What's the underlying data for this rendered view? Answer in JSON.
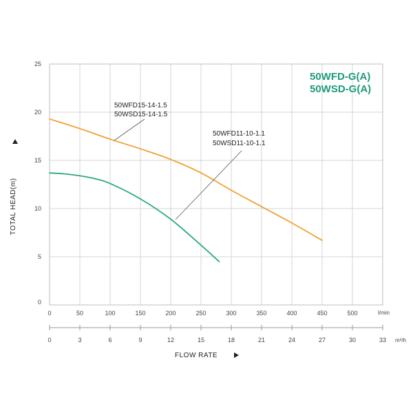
{
  "chart_data": {
    "type": "line",
    "title_lines": [
      "50WFD-G(A)",
      "50WSD-G(A)"
    ],
    "title_color": "#1e9a7a",
    "ylabel": "TOTAL HEAD(m)",
    "y_ticks": [
      0,
      5,
      10,
      15,
      20,
      25
    ],
    "ylim": [
      0,
      25
    ],
    "x_primary": {
      "unit": "l/min",
      "ticks": [
        0,
        50,
        100,
        150,
        200,
        250,
        300,
        350,
        400,
        450,
        500
      ],
      "range": [
        0,
        550
      ]
    },
    "x_secondary": {
      "unit": "m³/h",
      "ticks": [
        0,
        3,
        6,
        9,
        12,
        15,
        18,
        21,
        24,
        27,
        30,
        33
      ],
      "range": [
        0,
        33
      ]
    },
    "xlabel": "FLOW RATE",
    "grid": true,
    "series": [
      {
        "label_lines": [
          "50WFD15-14-1.5",
          "50WSD15-14-1.5"
        ],
        "color": "#f0a030",
        "x": [
          0,
          50,
          100,
          150,
          200,
          250,
          300,
          350,
          400,
          450
        ],
        "y": [
          19.3,
          18.3,
          17.2,
          16.2,
          15.1,
          13.7,
          11.9,
          10.2,
          8.5,
          6.7
        ]
      },
      {
        "label_lines": [
          "50WFD11-10-1.1",
          "50WSD11-10-1.1"
        ],
        "color": "#2aa888",
        "x": [
          0,
          25,
          50,
          75,
          100,
          150,
          200,
          250,
          280
        ],
        "y": [
          13.7,
          13.6,
          13.4,
          13.1,
          12.6,
          11.0,
          8.9,
          6.2,
          4.5
        ]
      }
    ]
  }
}
